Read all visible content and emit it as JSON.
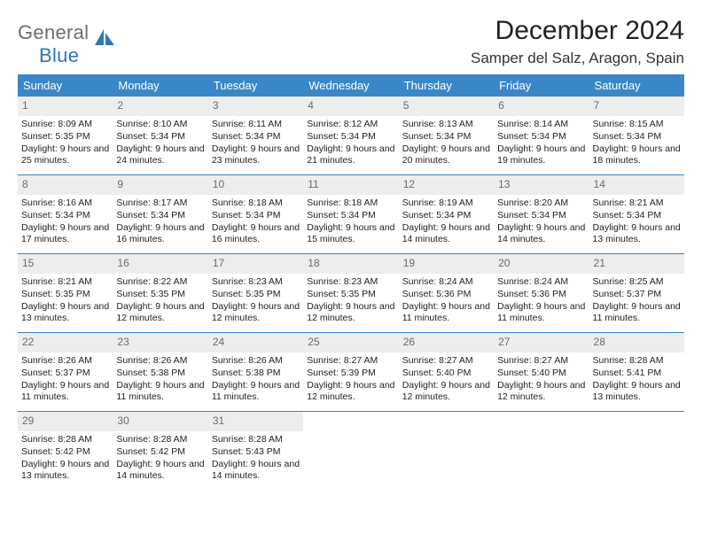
{
  "logo": {
    "word1": "General",
    "word2": "Blue"
  },
  "title": "December 2024",
  "location": "Samper del Salz, Aragon, Spain",
  "colors": {
    "header_bg": "#3a87c7",
    "daynum_bg": "#ededed",
    "row_border": "#3a87c7",
    "logo_gray": "#6d6d6d",
    "logo_blue": "#2f77b9"
  },
  "dow": [
    "Sunday",
    "Monday",
    "Tuesday",
    "Wednesday",
    "Thursday",
    "Friday",
    "Saturday"
  ],
  "weeks": [
    [
      {
        "n": "1",
        "sr": "8:09 AM",
        "ss": "5:35 PM",
        "dl": "9 hours and 25 minutes."
      },
      {
        "n": "2",
        "sr": "8:10 AM",
        "ss": "5:34 PM",
        "dl": "9 hours and 24 minutes."
      },
      {
        "n": "3",
        "sr": "8:11 AM",
        "ss": "5:34 PM",
        "dl": "9 hours and 23 minutes."
      },
      {
        "n": "4",
        "sr": "8:12 AM",
        "ss": "5:34 PM",
        "dl": "9 hours and 21 minutes."
      },
      {
        "n": "5",
        "sr": "8:13 AM",
        "ss": "5:34 PM",
        "dl": "9 hours and 20 minutes."
      },
      {
        "n": "6",
        "sr": "8:14 AM",
        "ss": "5:34 PM",
        "dl": "9 hours and 19 minutes."
      },
      {
        "n": "7",
        "sr": "8:15 AM",
        "ss": "5:34 PM",
        "dl": "9 hours and 18 minutes."
      }
    ],
    [
      {
        "n": "8",
        "sr": "8:16 AM",
        "ss": "5:34 PM",
        "dl": "9 hours and 17 minutes."
      },
      {
        "n": "9",
        "sr": "8:17 AM",
        "ss": "5:34 PM",
        "dl": "9 hours and 16 minutes."
      },
      {
        "n": "10",
        "sr": "8:18 AM",
        "ss": "5:34 PM",
        "dl": "9 hours and 16 minutes."
      },
      {
        "n": "11",
        "sr": "8:18 AM",
        "ss": "5:34 PM",
        "dl": "9 hours and 15 minutes."
      },
      {
        "n": "12",
        "sr": "8:19 AM",
        "ss": "5:34 PM",
        "dl": "9 hours and 14 minutes."
      },
      {
        "n": "13",
        "sr": "8:20 AM",
        "ss": "5:34 PM",
        "dl": "9 hours and 14 minutes."
      },
      {
        "n": "14",
        "sr": "8:21 AM",
        "ss": "5:34 PM",
        "dl": "9 hours and 13 minutes."
      }
    ],
    [
      {
        "n": "15",
        "sr": "8:21 AM",
        "ss": "5:35 PM",
        "dl": "9 hours and 13 minutes."
      },
      {
        "n": "16",
        "sr": "8:22 AM",
        "ss": "5:35 PM",
        "dl": "9 hours and 12 minutes."
      },
      {
        "n": "17",
        "sr": "8:23 AM",
        "ss": "5:35 PM",
        "dl": "9 hours and 12 minutes."
      },
      {
        "n": "18",
        "sr": "8:23 AM",
        "ss": "5:35 PM",
        "dl": "9 hours and 12 minutes."
      },
      {
        "n": "19",
        "sr": "8:24 AM",
        "ss": "5:36 PM",
        "dl": "9 hours and 11 minutes."
      },
      {
        "n": "20",
        "sr": "8:24 AM",
        "ss": "5:36 PM",
        "dl": "9 hours and 11 minutes."
      },
      {
        "n": "21",
        "sr": "8:25 AM",
        "ss": "5:37 PM",
        "dl": "9 hours and 11 minutes."
      }
    ],
    [
      {
        "n": "22",
        "sr": "8:26 AM",
        "ss": "5:37 PM",
        "dl": "9 hours and 11 minutes."
      },
      {
        "n": "23",
        "sr": "8:26 AM",
        "ss": "5:38 PM",
        "dl": "9 hours and 11 minutes."
      },
      {
        "n": "24",
        "sr": "8:26 AM",
        "ss": "5:38 PM",
        "dl": "9 hours and 11 minutes."
      },
      {
        "n": "25",
        "sr": "8:27 AM",
        "ss": "5:39 PM",
        "dl": "9 hours and 12 minutes."
      },
      {
        "n": "26",
        "sr": "8:27 AM",
        "ss": "5:40 PM",
        "dl": "9 hours and 12 minutes."
      },
      {
        "n": "27",
        "sr": "8:27 AM",
        "ss": "5:40 PM",
        "dl": "9 hours and 12 minutes."
      },
      {
        "n": "28",
        "sr": "8:28 AM",
        "ss": "5:41 PM",
        "dl": "9 hours and 13 minutes."
      }
    ],
    [
      {
        "n": "29",
        "sr": "8:28 AM",
        "ss": "5:42 PM",
        "dl": "9 hours and 13 minutes."
      },
      {
        "n": "30",
        "sr": "8:28 AM",
        "ss": "5:42 PM",
        "dl": "9 hours and 14 minutes."
      },
      {
        "n": "31",
        "sr": "8:28 AM",
        "ss": "5:43 PM",
        "dl": "9 hours and 14 minutes."
      },
      null,
      null,
      null,
      null
    ]
  ],
  "labels": {
    "sunrise": "Sunrise:",
    "sunset": "Sunset:",
    "daylight": "Daylight:"
  }
}
